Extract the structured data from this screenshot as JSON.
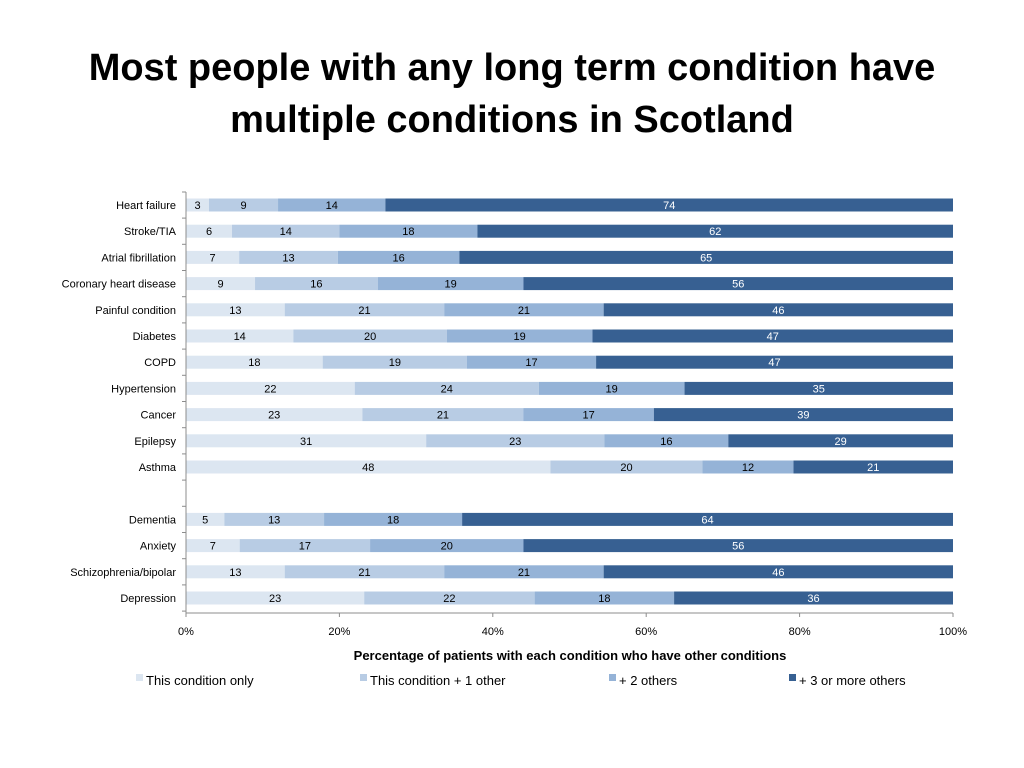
{
  "slide": {
    "title_line1": "Most people with any long term condition have",
    "title_line2": "multiple conditions in Scotland"
  },
  "chart_data": {
    "type": "bar",
    "orientation": "horizontal",
    "stacked": "percent",
    "xlabel": "Percentage of patients with each condition who have other conditions",
    "ylabel": "",
    "xlim": [
      0,
      100
    ],
    "x_ticks": [
      "0%",
      "20%",
      "40%",
      "60%",
      "80%",
      "100%"
    ],
    "legend_position": "bottom",
    "grid": false,
    "groups": [
      {
        "categories": [
          "Heart failure",
          "Stroke/TIA",
          "Atrial fibrillation",
          "Coronary heart disease",
          "Painful condition",
          "Diabetes",
          "COPD",
          "Hypertension",
          "Cancer",
          "Epilepsy",
          "Asthma"
        ],
        "series": [
          {
            "name": "This condition only",
            "values": [
              3,
              6,
              7,
              9,
              13,
              14,
              18,
              22,
              23,
              31,
              48
            ]
          },
          {
            "name": "This condition + 1 other",
            "values": [
              9,
              14,
              13,
              16,
              21,
              20,
              19,
              24,
              21,
              23,
              20
            ]
          },
          {
            "name": "+ 2 others",
            "values": [
              14,
              18,
              16,
              19,
              21,
              19,
              17,
              19,
              17,
              16,
              12
            ]
          },
          {
            "name": "+ 3 or more others",
            "values": [
              74,
              62,
              65,
              56,
              46,
              47,
              47,
              35,
              39,
              29,
              21
            ]
          }
        ]
      },
      {
        "categories": [
          "Dementia",
          "Anxiety",
          "Schizophrenia/bipolar",
          "Depression"
        ],
        "series": [
          {
            "name": "This condition only",
            "values": [
              5,
              7,
              13,
              23
            ]
          },
          {
            "name": "This condition + 1 other",
            "values": [
              13,
              17,
              21,
              22
            ]
          },
          {
            "name": "+ 2 others",
            "values": [
              18,
              20,
              21,
              18
            ]
          },
          {
            "name": "+ 3 or more others",
            "values": [
              64,
              56,
              46,
              36
            ]
          }
        ]
      }
    ],
    "colors": [
      "#dce6f1",
      "#b8cce4",
      "#95b3d7",
      "#376092"
    ],
    "label_colors": [
      "#000000",
      "#000000",
      "#000000",
      "#ffffff"
    ]
  }
}
